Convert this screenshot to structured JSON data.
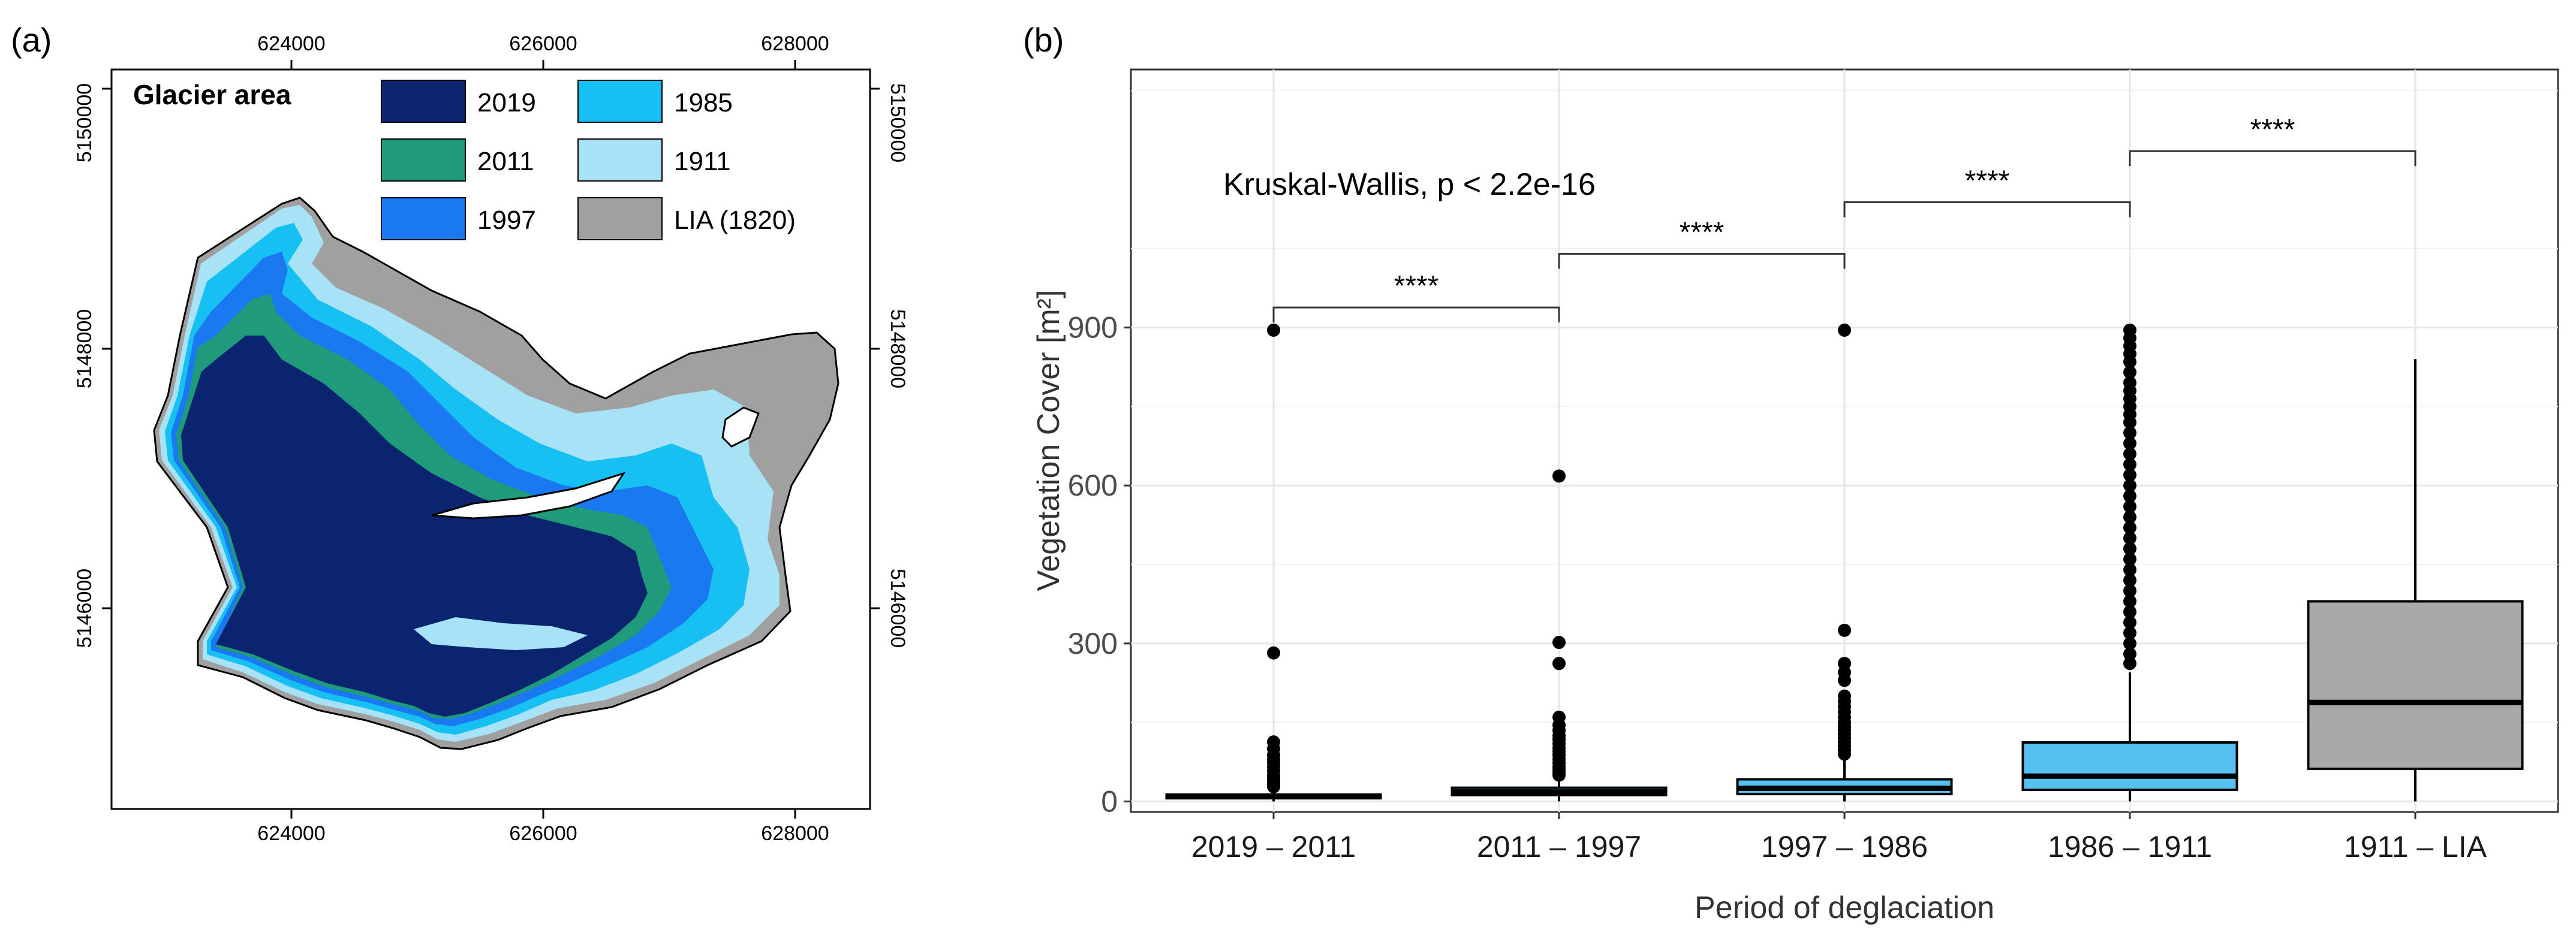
{
  "panel_a": {
    "label": "(a)",
    "legend_title": "Glacier area",
    "legend": [
      {
        "label": "2019",
        "color": "#0a2470"
      },
      {
        "label": "2011",
        "color": "#1f9b7c"
      },
      {
        "label": "1997",
        "color": "#1a78f0"
      },
      {
        "label": "1985",
        "color": "#17c0f3"
      },
      {
        "label": "1911",
        "color": "#a8e2f7"
      },
      {
        "label": "LIA (1820)",
        "color": "#a0a0a0"
      }
    ],
    "x_ticks": [
      "624000",
      "626000",
      "628000"
    ],
    "y_ticks": [
      "5146000",
      "5148000",
      "5150000"
    ]
  },
  "panel_b": {
    "label": "(b)",
    "test_label": "Kruskal-Wallis, p < 2.2e-16"
  },
  "chart_data": {
    "type": "boxplot",
    "title": "",
    "xlabel": "Period of deglaciation",
    "ylabel": "Vegetation Cover [m²]",
    "ylim": [
      -20,
      1390
    ],
    "yticks": [
      0,
      300,
      600,
      900
    ],
    "grid": true,
    "categories": [
      "2019 – 2011",
      "2011 – 1997",
      "1997 – 1986",
      "1986 – 1911",
      "1911 – LIA"
    ],
    "boxes": [
      {
        "category": "2019 – 2011",
        "q1": 6,
        "median": 9,
        "q3": 13,
        "whisker_low": 0,
        "whisker_high": 22,
        "color": "#56c1ee",
        "outliers": [
          895,
          282,
          113,
          100,
          88,
          80,
          74,
          66,
          58,
          50,
          44,
          38,
          33,
          28
        ]
      },
      {
        "category": "2011 – 1997",
        "q1": 12,
        "median": 18,
        "q3": 26,
        "whisker_low": 0,
        "whisker_high": 45,
        "color": "#56c1ee",
        "outliers": [
          618,
          302,
          262,
          160,
          145,
          135,
          125,
          118,
          110,
          102,
          95,
          88,
          80,
          73,
          66,
          60,
          55,
          50
        ]
      },
      {
        "category": "1997 – 1986",
        "q1": 14,
        "median": 25,
        "q3": 42,
        "whisker_low": 0,
        "whisker_high": 82,
        "color": "#56c1ee",
        "outliers": [
          895,
          325,
          262,
          245,
          230,
          200,
          190,
          180,
          170,
          160,
          150,
          142,
          135,
          128,
          120,
          112,
          105,
          98,
          90
        ]
      },
      {
        "category": "1986 – 1911",
        "q1": 22,
        "median": 48,
        "q3": 112,
        "whisker_low": 0,
        "whisker_high": 245,
        "color": "#56c1ee",
        "outliers": [
          895,
          880,
          865,
          850,
          835,
          815,
          795,
          780,
          765,
          750,
          735,
          720,
          700,
          680,
          660,
          640,
          620,
          600,
          580,
          560,
          540,
          520,
          500,
          480,
          460,
          440,
          420,
          400,
          380,
          360,
          340,
          320,
          300,
          280,
          262
        ]
      },
      {
        "category": "1911 – LIA",
        "q1": 62,
        "median": 188,
        "q3": 380,
        "whisker_low": 0,
        "whisker_high": 840,
        "color": "#a9a9a9",
        "outliers": []
      }
    ],
    "comparisons": [
      {
        "from": "2019 – 2011",
        "to": "2011 – 1997",
        "y": 938,
        "label": "****"
      },
      {
        "from": "2011 – 1997",
        "to": "1997 – 1986",
        "y": 1040,
        "label": "****"
      },
      {
        "from": "1997 – 1986",
        "to": "1986 – 1911",
        "y": 1138,
        "label": "****"
      },
      {
        "from": "1986 – 1911",
        "to": "1911 – LIA",
        "y": 1235,
        "label": "****"
      }
    ]
  }
}
